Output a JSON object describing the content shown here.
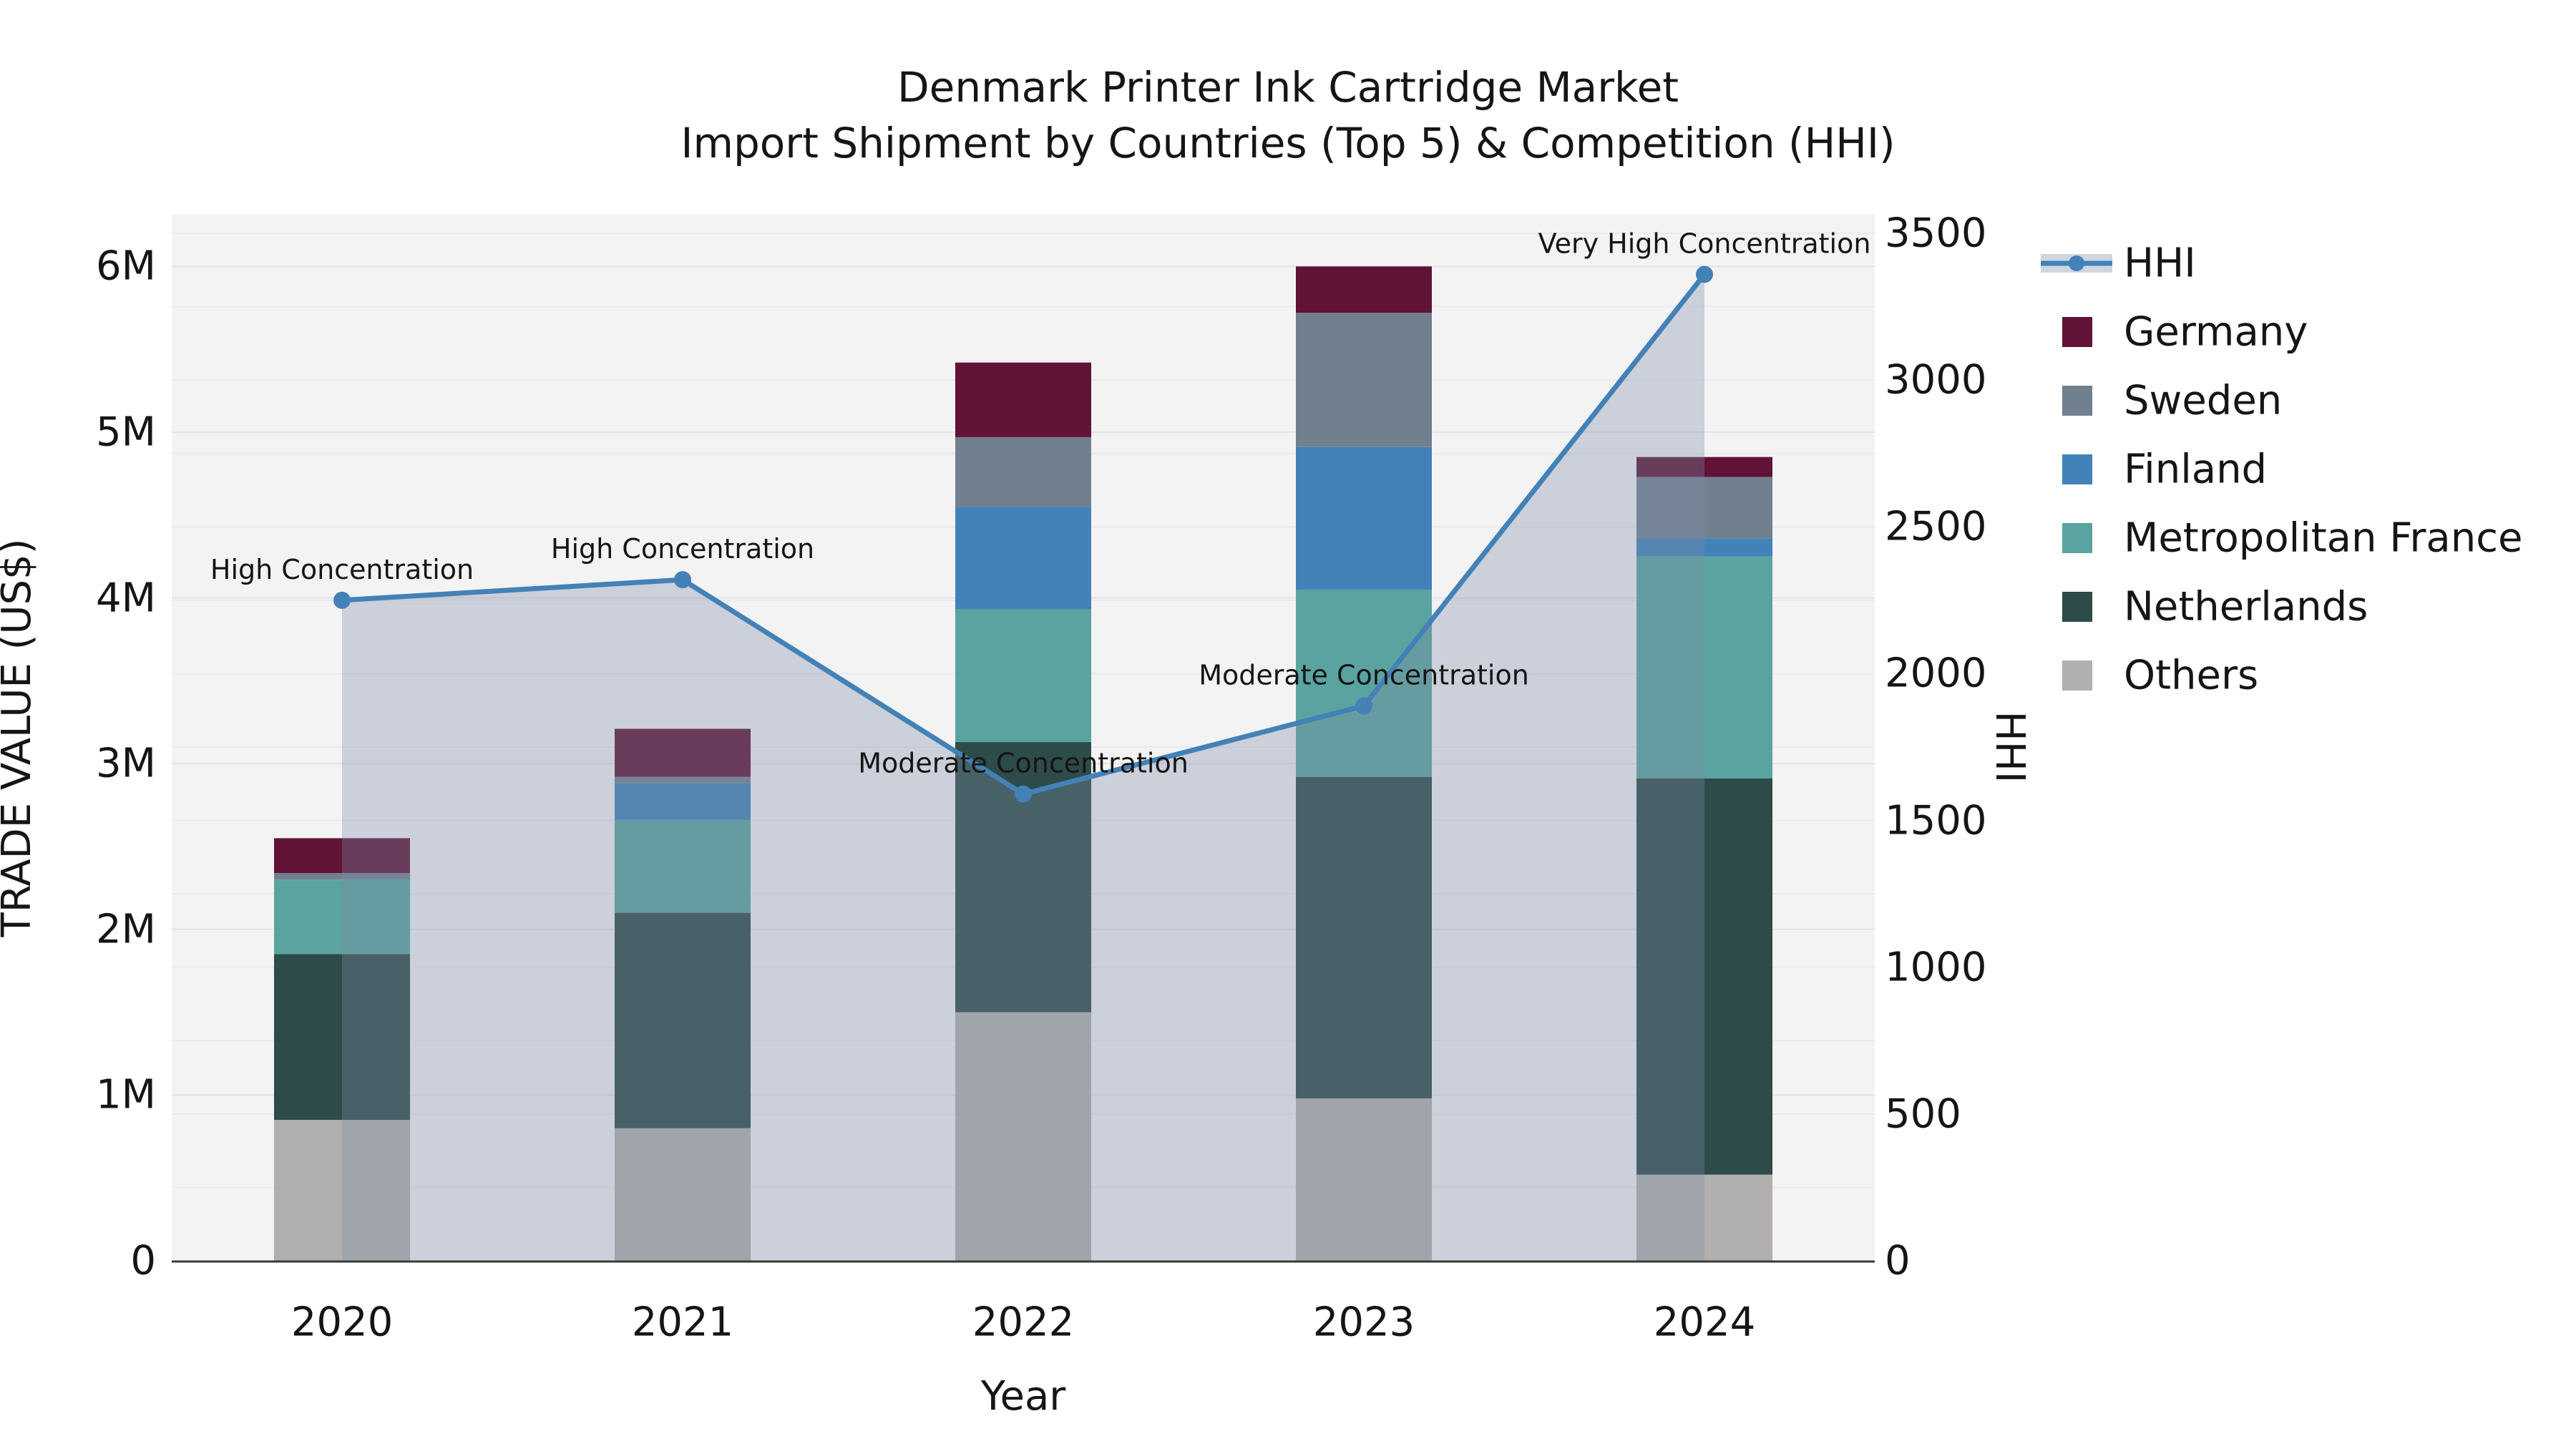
{
  "title": {
    "line1": "Denmark Printer Ink Cartridge Market",
    "line2": "Import Shipment by Countries (Top 5) & Competition (HHI)"
  },
  "axes": {
    "left": {
      "label": "TRADE VALUE (US$)",
      "ticks": [
        "0",
        "1M",
        "2M",
        "3M",
        "4M",
        "5M",
        "6M"
      ]
    },
    "right": {
      "label": "HHI",
      "ticks": [
        "0",
        "500",
        "1000",
        "1500",
        "2000",
        "2500",
        "3000",
        "3500"
      ]
    },
    "x": {
      "label": "Year",
      "ticks": [
        "2020",
        "2021",
        "2022",
        "2023",
        "2024"
      ]
    }
  },
  "legend": {
    "items": [
      {
        "label": "HHI",
        "type": "line"
      },
      {
        "label": "Germany",
        "type": "swatch"
      },
      {
        "label": "Sweden",
        "type": "swatch"
      },
      {
        "label": "Finland",
        "type": "swatch"
      },
      {
        "label": "Metropolitan France",
        "type": "swatch"
      },
      {
        "label": "Netherlands",
        "type": "swatch"
      },
      {
        "label": "Others",
        "type": "swatch"
      }
    ]
  },
  "colors": {
    "plot_bg": "#f3f3f4",
    "grid_minor": "#eaeaed",
    "grid_major": "#e3e3e7",
    "spine": "#3a3a3a",
    "hhi_line": "#4381b7",
    "hhi_area": "#7d8ea7",
    "hhi_area_alpha": "0.34",
    "hhi_legend_band": "#cfd6e0",
    "by_series": {
      "Germany": "#601336",
      "Sweden": "#71808f",
      "Finland": "#4282b8",
      "Metropolitan France": "#5ba3a0",
      "Netherlands": "#2d4b48",
      "Others": "#b2b0ae"
    }
  },
  "chart_data": {
    "type": "bar+line",
    "title": "Denmark Printer Ink Cartridge Market — Import Shipment by Countries (Top 5) & Competition (HHI)",
    "categories": [
      "2020",
      "2021",
      "2022",
      "2023",
      "2024"
    ],
    "unit": "million US$",
    "stack_order_bottom_to_top": [
      "Others",
      "Netherlands",
      "Metropolitan France",
      "Finland",
      "Sweden",
      "Germany"
    ],
    "series": [
      {
        "name": "Others",
        "values": [
          0.85,
          0.8,
          1.5,
          0.98,
          0.52
        ]
      },
      {
        "name": "Netherlands",
        "values": [
          1.0,
          1.3,
          1.63,
          1.94,
          2.39
        ]
      },
      {
        "name": "Metropolitan France",
        "values": [
          0.45,
          0.56,
          0.8,
          1.13,
          1.34
        ]
      },
      {
        "name": "Finland",
        "values": [
          0.0,
          0.22,
          0.62,
          0.86,
          0.11
        ]
      },
      {
        "name": "Sweden",
        "values": [
          0.04,
          0.04,
          0.42,
          0.81,
          0.37
        ]
      },
      {
        "name": "Germany",
        "values": [
          0.21,
          0.29,
          0.45,
          0.28,
          0.12
        ]
      }
    ],
    "bar_totals": [
      2.55,
      3.21,
      5.42,
      6.0,
      4.85
    ],
    "line_series": {
      "name": "HHI",
      "axis": "right",
      "values": [
        2250,
        2320,
        1590,
        1890,
        3360
      ],
      "area_fill": true
    },
    "annotations": [
      {
        "category": "2020",
        "text": "High Concentration"
      },
      {
        "category": "2021",
        "text": "High Concentration"
      },
      {
        "category": "2022",
        "text": "Moderate Concentration"
      },
      {
        "category": "2023",
        "text": "Moderate Concentration"
      },
      {
        "category": "2024",
        "text": "Very High Concentration"
      }
    ],
    "xlabel": "Year",
    "ylabel_left": "TRADE VALUE (US$)",
    "ylabel_right": "HHI",
    "ylim_left_musd": [
      0,
      6.2
    ],
    "ylim_right_hhi": [
      0,
      3500
    ],
    "grid": true,
    "legend_position": "right"
  }
}
